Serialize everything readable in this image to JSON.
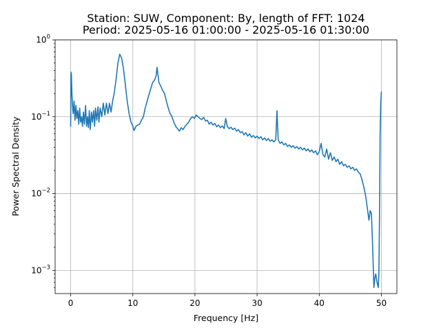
{
  "chart_data": {
    "type": "line",
    "title": [
      "Station: SUW, Component: By, length of FFT: 1024",
      "Period: 2025-05-16 01:00:00 - 2025-05-16 01:30:00"
    ],
    "xlabel": "Frequency [Hz]",
    "ylabel": "Power Spectral Density",
    "xlim": [
      -2.5,
      52.5
    ],
    "ylim": [
      0.0005,
      1
    ],
    "yscale": "log",
    "grid": true,
    "xticks": [
      0,
      10,
      20,
      30,
      40,
      50
    ],
    "xtick_labels": [
      "0",
      "10",
      "20",
      "30",
      "40",
      "50"
    ],
    "yticks": [
      0.001,
      0.01,
      0.1,
      1
    ],
    "ytick_labels": [
      {
        "base": "10",
        "exp": "−3"
      },
      {
        "base": "10",
        "exp": "−2"
      },
      {
        "base": "10",
        "exp": "−1"
      },
      {
        "base": "10",
        "exp": "0"
      }
    ],
    "series": [
      {
        "color": "#1f77b4",
        "points": [
          [
            0.0,
            0.075
          ],
          [
            0.05,
            0.38
          ],
          [
            0.12,
            0.35
          ],
          [
            0.2,
            0.2
          ],
          [
            0.3,
            0.14
          ],
          [
            0.4,
            0.11
          ],
          [
            0.55,
            0.16
          ],
          [
            0.7,
            0.09
          ],
          [
            0.85,
            0.14
          ],
          [
            1.0,
            0.095
          ],
          [
            1.15,
            0.12
          ],
          [
            1.3,
            0.08
          ],
          [
            1.45,
            0.13
          ],
          [
            1.6,
            0.085
          ],
          [
            1.75,
            0.1
          ],
          [
            1.9,
            0.075
          ],
          [
            2.05,
            0.115
          ],
          [
            2.2,
            0.08
          ],
          [
            2.4,
            0.14
          ],
          [
            2.55,
            0.075
          ],
          [
            2.7,
            0.1
          ],
          [
            2.85,
            0.072
          ],
          [
            3.0,
            0.12
          ],
          [
            3.15,
            0.068
          ],
          [
            3.35,
            0.115
          ],
          [
            3.5,
            0.085
          ],
          [
            3.7,
            0.12
          ],
          [
            3.85,
            0.075
          ],
          [
            4.0,
            0.13
          ],
          [
            4.2,
            0.09
          ],
          [
            4.4,
            0.135
          ],
          [
            4.55,
            0.085
          ],
          [
            4.75,
            0.13
          ],
          [
            5.0,
            0.1
          ],
          [
            5.25,
            0.15
          ],
          [
            5.5,
            0.105
          ],
          [
            5.75,
            0.15
          ],
          [
            6.0,
            0.11
          ],
          [
            6.25,
            0.15
          ],
          [
            6.5,
            0.115
          ],
          [
            6.75,
            0.16
          ],
          [
            7.0,
            0.2
          ],
          [
            7.3,
            0.3
          ],
          [
            7.6,
            0.5
          ],
          [
            7.9,
            0.65
          ],
          [
            8.2,
            0.58
          ],
          [
            8.5,
            0.42
          ],
          [
            8.8,
            0.26
          ],
          [
            9.1,
            0.16
          ],
          [
            9.4,
            0.11
          ],
          [
            9.7,
            0.085
          ],
          [
            10.0,
            0.076
          ],
          [
            10.2,
            0.066
          ],
          [
            10.5,
            0.075
          ],
          [
            10.8,
            0.078
          ],
          [
            11.1,
            0.08
          ],
          [
            11.4,
            0.09
          ],
          [
            11.7,
            0.1
          ],
          [
            12.0,
            0.13
          ],
          [
            12.4,
            0.17
          ],
          [
            12.8,
            0.22
          ],
          [
            13.2,
            0.28
          ],
          [
            13.5,
            0.3
          ],
          [
            13.75,
            0.34
          ],
          [
            13.9,
            0.44
          ],
          [
            14.0,
            0.38
          ],
          [
            14.2,
            0.28
          ],
          [
            14.5,
            0.25
          ],
          [
            14.8,
            0.22
          ],
          [
            15.1,
            0.2
          ],
          [
            15.4,
            0.16
          ],
          [
            15.7,
            0.13
          ],
          [
            16.0,
            0.11
          ],
          [
            16.3,
            0.1
          ],
          [
            16.6,
            0.085
          ],
          [
            16.9,
            0.075
          ],
          [
            17.2,
            0.07
          ],
          [
            17.5,
            0.065
          ],
          [
            17.8,
            0.072
          ],
          [
            18.1,
            0.068
          ],
          [
            18.4,
            0.075
          ],
          [
            18.7,
            0.08
          ],
          [
            19.0,
            0.085
          ],
          [
            19.3,
            0.095
          ],
          [
            19.6,
            0.1
          ],
          [
            19.9,
            0.095
          ],
          [
            20.2,
            0.105
          ],
          [
            20.5,
            0.1
          ],
          [
            20.8,
            0.095
          ],
          [
            21.1,
            0.092
          ],
          [
            21.4,
            0.098
          ],
          [
            21.7,
            0.088
          ],
          [
            22.0,
            0.09
          ],
          [
            22.3,
            0.08
          ],
          [
            22.6,
            0.085
          ],
          [
            22.9,
            0.078
          ],
          [
            23.2,
            0.082
          ],
          [
            23.5,
            0.074
          ],
          [
            23.8,
            0.078
          ],
          [
            24.1,
            0.072
          ],
          [
            24.4,
            0.076
          ],
          [
            24.7,
            0.07
          ],
          [
            24.95,
            0.095
          ],
          [
            25.2,
            0.075
          ],
          [
            25.5,
            0.07
          ],
          [
            25.8,
            0.073
          ],
          [
            26.1,
            0.068
          ],
          [
            26.4,
            0.071
          ],
          [
            26.7,
            0.065
          ],
          [
            27.0,
            0.068
          ],
          [
            27.3,
            0.062
          ],
          [
            27.6,
            0.064
          ],
          [
            27.9,
            0.058
          ],
          [
            28.2,
            0.062
          ],
          [
            28.5,
            0.056
          ],
          [
            28.8,
            0.06
          ],
          [
            29.1,
            0.054
          ],
          [
            29.4,
            0.057
          ],
          [
            29.7,
            0.053
          ],
          [
            30.0,
            0.056
          ],
          [
            30.3,
            0.052
          ],
          [
            30.6,
            0.055
          ],
          [
            30.9,
            0.05
          ],
          [
            31.2,
            0.053
          ],
          [
            31.5,
            0.049
          ],
          [
            31.8,
            0.052
          ],
          [
            32.1,
            0.048
          ],
          [
            32.4,
            0.05
          ],
          [
            32.7,
            0.047
          ],
          [
            33.0,
            0.05
          ],
          [
            33.2,
            0.12
          ],
          [
            33.4,
            0.05
          ],
          [
            33.7,
            0.045
          ],
          [
            34.0,
            0.047
          ],
          [
            34.3,
            0.043
          ],
          [
            34.6,
            0.045
          ],
          [
            34.9,
            0.041
          ],
          [
            35.2,
            0.043
          ],
          [
            35.5,
            0.04
          ],
          [
            35.8,
            0.042
          ],
          [
            36.1,
            0.039
          ],
          [
            36.4,
            0.041
          ],
          [
            36.7,
            0.038
          ],
          [
            37.0,
            0.04
          ],
          [
            37.3,
            0.037
          ],
          [
            37.6,
            0.039
          ],
          [
            37.9,
            0.036
          ],
          [
            38.2,
            0.038
          ],
          [
            38.5,
            0.035
          ],
          [
            38.8,
            0.037
          ],
          [
            39.1,
            0.034
          ],
          [
            39.4,
            0.036
          ],
          [
            39.7,
            0.032
          ],
          [
            40.0,
            0.035
          ],
          [
            40.3,
            0.045
          ],
          [
            40.6,
            0.032
          ],
          [
            40.9,
            0.03
          ],
          [
            41.2,
            0.038
          ],
          [
            41.5,
            0.028
          ],
          [
            41.8,
            0.034
          ],
          [
            42.1,
            0.027
          ],
          [
            42.4,
            0.03
          ],
          [
            42.7,
            0.026
          ],
          [
            43.0,
            0.028
          ],
          [
            43.3,
            0.024
          ],
          [
            43.6,
            0.026
          ],
          [
            43.9,
            0.023
          ],
          [
            44.2,
            0.024
          ],
          [
            44.5,
            0.022
          ],
          [
            44.8,
            0.023
          ],
          [
            45.1,
            0.021
          ],
          [
            45.4,
            0.022
          ],
          [
            45.7,
            0.02
          ],
          [
            46.0,
            0.021
          ],
          [
            46.3,
            0.019
          ],
          [
            46.6,
            0.018
          ],
          [
            46.9,
            0.015
          ],
          [
            47.2,
            0.012
          ],
          [
            47.5,
            0.009
          ],
          [
            47.8,
            0.006
          ],
          [
            48.0,
            0.0045
          ],
          [
            48.2,
            0.006
          ],
          [
            48.4,
            0.0055
          ],
          [
            48.6,
            0.002
          ],
          [
            48.8,
            0.0006
          ],
          [
            48.95,
            0.0008
          ],
          [
            49.1,
            0.0009
          ],
          [
            49.3,
            0.0007
          ],
          [
            49.5,
            0.0006
          ],
          [
            49.6,
            0.0009
          ],
          [
            49.7,
            0.005
          ],
          [
            49.8,
            0.06
          ],
          [
            49.9,
            0.15
          ],
          [
            50.0,
            0.21
          ]
        ]
      }
    ]
  }
}
